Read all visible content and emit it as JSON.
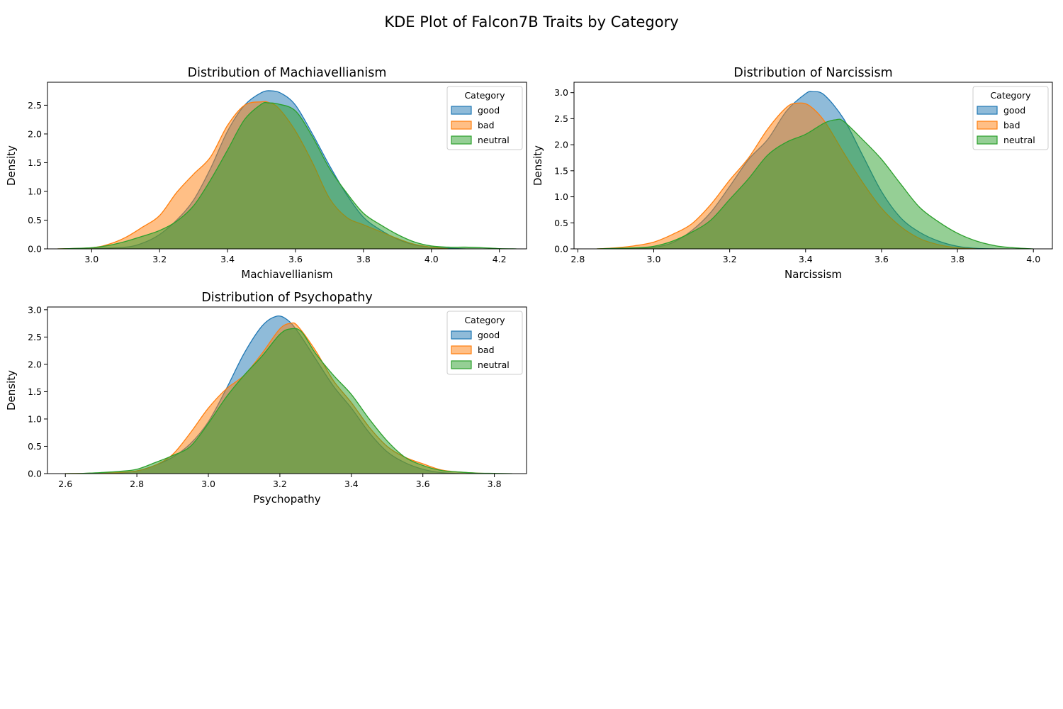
{
  "figure": {
    "title": "KDE Plot of Falcon7B Traits by Category"
  },
  "chart_data": [
    {
      "type": "area",
      "title": "Distribution of Machiavellianism",
      "xlabel": "Machiavellianism",
      "ylabel": "Density",
      "xlim": [
        2.87,
        4.28
      ],
      "ylim": [
        0,
        2.9
      ],
      "xticks": [
        3.0,
        3.2,
        3.4,
        3.6,
        3.8,
        4.0,
        4.2
      ],
      "yticks": [
        0.0,
        0.5,
        1.0,
        1.5,
        2.0,
        2.5
      ],
      "grid": false,
      "legend": {
        "title": "Category",
        "placement": "upper right"
      },
      "series": [
        {
          "name": "good",
          "color": "#1f77b4",
          "x": [
            2.95,
            3.0,
            3.1,
            3.15,
            3.2,
            3.25,
            3.3,
            3.35,
            3.4,
            3.45,
            3.5,
            3.53,
            3.56,
            3.6,
            3.65,
            3.7,
            3.75,
            3.8,
            3.85,
            3.9,
            3.95,
            4.0,
            4.05,
            4.1
          ],
          "y": [
            0,
            0.005,
            0.03,
            0.1,
            0.25,
            0.5,
            0.85,
            1.4,
            2.05,
            2.5,
            2.72,
            2.75,
            2.7,
            2.5,
            2.0,
            1.45,
            0.95,
            0.55,
            0.33,
            0.17,
            0.07,
            0.03,
            0.01,
            0
          ]
        },
        {
          "name": "bad",
          "color": "#ff7f0e",
          "x": [
            2.9,
            3.0,
            3.05,
            3.1,
            3.15,
            3.2,
            3.25,
            3.3,
            3.35,
            3.4,
            3.45,
            3.5,
            3.52,
            3.55,
            3.6,
            3.65,
            3.7,
            3.75,
            3.8,
            3.85,
            3.9,
            3.95,
            4.0,
            4.05
          ],
          "y": [
            0,
            0.02,
            0.08,
            0.2,
            0.38,
            0.58,
            0.98,
            1.3,
            1.6,
            2.15,
            2.5,
            2.56,
            2.55,
            2.45,
            2.05,
            1.5,
            0.88,
            0.55,
            0.42,
            0.3,
            0.18,
            0.08,
            0.03,
            0
          ]
        },
        {
          "name": "neutral",
          "color": "#2ca02c",
          "x": [
            2.9,
            3.0,
            3.05,
            3.1,
            3.15,
            3.2,
            3.25,
            3.3,
            3.35,
            3.4,
            3.45,
            3.5,
            3.52,
            3.55,
            3.6,
            3.65,
            3.7,
            3.75,
            3.8,
            3.85,
            3.9,
            3.95,
            4.0,
            4.05,
            4.1,
            4.15,
            4.2,
            4.25
          ],
          "y": [
            0,
            0.02,
            0.06,
            0.13,
            0.22,
            0.32,
            0.48,
            0.75,
            1.2,
            1.72,
            2.25,
            2.52,
            2.54,
            2.52,
            2.4,
            1.95,
            1.4,
            0.98,
            0.62,
            0.42,
            0.25,
            0.12,
            0.05,
            0.03,
            0.03,
            0.02,
            0.005,
            0
          ]
        }
      ]
    },
    {
      "type": "area",
      "title": "Distribution of Narcissism",
      "xlabel": "Narcissism",
      "ylabel": "Density",
      "xlim": [
        2.79,
        4.05
      ],
      "ylim": [
        0,
        3.2
      ],
      "xticks": [
        2.8,
        3.0,
        3.2,
        3.4,
        3.6,
        3.8,
        4.0
      ],
      "yticks": [
        0.0,
        0.5,
        1.0,
        1.5,
        2.0,
        2.5,
        3.0
      ],
      "grid": false,
      "legend": {
        "title": "Category",
        "placement": "upper right"
      },
      "series": [
        {
          "name": "good",
          "color": "#1f77b4",
          "x": [
            2.9,
            2.95,
            3.0,
            3.05,
            3.1,
            3.15,
            3.2,
            3.25,
            3.3,
            3.35,
            3.4,
            3.42,
            3.45,
            3.5,
            3.55,
            3.6,
            3.65,
            3.7,
            3.75,
            3.8,
            3.85,
            3.9
          ],
          "y": [
            0,
            0.01,
            0.03,
            0.12,
            0.35,
            0.7,
            1.2,
            1.72,
            2.1,
            2.65,
            2.98,
            3.02,
            2.95,
            2.5,
            1.8,
            1.1,
            0.6,
            0.32,
            0.15,
            0.05,
            0.01,
            0
          ]
        },
        {
          "name": "bad",
          "color": "#ff7f0e",
          "x": [
            2.85,
            2.9,
            2.95,
            3.0,
            3.05,
            3.1,
            3.15,
            3.2,
            3.25,
            3.3,
            3.35,
            3.38,
            3.41,
            3.45,
            3.5,
            3.55,
            3.6,
            3.65,
            3.7,
            3.75,
            3.8,
            3.85
          ],
          "y": [
            0,
            0.02,
            0.06,
            0.13,
            0.28,
            0.48,
            0.85,
            1.32,
            1.75,
            2.3,
            2.72,
            2.8,
            2.75,
            2.45,
            1.85,
            1.28,
            0.78,
            0.43,
            0.2,
            0.08,
            0.02,
            0
          ]
        },
        {
          "name": "neutral",
          "color": "#2ca02c",
          "x": [
            2.85,
            2.9,
            2.95,
            3.0,
            3.05,
            3.1,
            3.15,
            3.2,
            3.25,
            3.3,
            3.35,
            3.4,
            3.45,
            3.48,
            3.5,
            3.55,
            3.6,
            3.65,
            3.7,
            3.75,
            3.8,
            3.85,
            3.9,
            3.95,
            4.0
          ],
          "y": [
            0,
            0.01,
            0.02,
            0.05,
            0.15,
            0.32,
            0.55,
            0.95,
            1.35,
            1.8,
            2.05,
            2.2,
            2.42,
            2.48,
            2.45,
            2.1,
            1.72,
            1.25,
            0.8,
            0.52,
            0.3,
            0.15,
            0.06,
            0.02,
            0
          ]
        }
      ]
    },
    {
      "type": "area",
      "title": "Distribution of Psychopathy",
      "xlabel": "Psychopathy",
      "ylabel": "Density",
      "xlim": [
        2.55,
        3.89
      ],
      "ylim": [
        0,
        3.05
      ],
      "xticks": [
        2.6,
        2.8,
        3.0,
        3.2,
        3.4,
        3.6,
        3.8
      ],
      "yticks": [
        0.0,
        0.5,
        1.0,
        1.5,
        2.0,
        2.5,
        3.0
      ],
      "grid": false,
      "legend": {
        "title": "Category",
        "placement": "upper right"
      },
      "series": [
        {
          "name": "good",
          "color": "#1f77b4",
          "x": [
            2.7,
            2.75,
            2.8,
            2.85,
            2.9,
            2.95,
            3.0,
            3.05,
            3.1,
            3.15,
            3.19,
            3.22,
            3.25,
            3.3,
            3.35,
            3.4,
            3.45,
            3.5,
            3.55,
            3.6,
            3.65,
            3.7
          ],
          "y": [
            0,
            0.01,
            0.05,
            0.15,
            0.3,
            0.55,
            0.95,
            1.55,
            2.2,
            2.7,
            2.88,
            2.82,
            2.6,
            2.1,
            1.6,
            1.2,
            0.75,
            0.4,
            0.2,
            0.08,
            0.02,
            0
          ]
        },
        {
          "name": "bad",
          "color": "#ff7f0e",
          "x": [
            2.6,
            2.7,
            2.75,
            2.8,
            2.85,
            2.9,
            2.95,
            3.0,
            3.05,
            3.1,
            3.15,
            3.2,
            3.23,
            3.25,
            3.3,
            3.35,
            3.4,
            3.45,
            3.5,
            3.55,
            3.6,
            3.65,
            3.7,
            3.75,
            3.8
          ],
          "y": [
            0,
            0.01,
            0.02,
            0.05,
            0.15,
            0.35,
            0.75,
            1.2,
            1.55,
            1.8,
            2.2,
            2.65,
            2.75,
            2.7,
            2.25,
            1.7,
            1.3,
            0.85,
            0.5,
            0.3,
            0.18,
            0.07,
            0.03,
            0.01,
            0
          ]
        },
        {
          "name": "neutral",
          "color": "#2ca02c",
          "x": [
            2.6,
            2.65,
            2.7,
            2.75,
            2.8,
            2.85,
            2.9,
            2.95,
            3.0,
            3.05,
            3.1,
            3.15,
            3.2,
            3.23,
            3.26,
            3.3,
            3.35,
            3.4,
            3.45,
            3.5,
            3.55,
            3.6,
            3.65,
            3.7,
            3.75,
            3.8,
            3.85
          ],
          "y": [
            0,
            0.005,
            0.02,
            0.04,
            0.08,
            0.2,
            0.33,
            0.5,
            0.92,
            1.4,
            1.8,
            2.15,
            2.55,
            2.65,
            2.6,
            2.2,
            1.8,
            1.45,
            1.0,
            0.6,
            0.3,
            0.15,
            0.06,
            0.03,
            0.01,
            0.005,
            0
          ]
        }
      ]
    }
  ]
}
